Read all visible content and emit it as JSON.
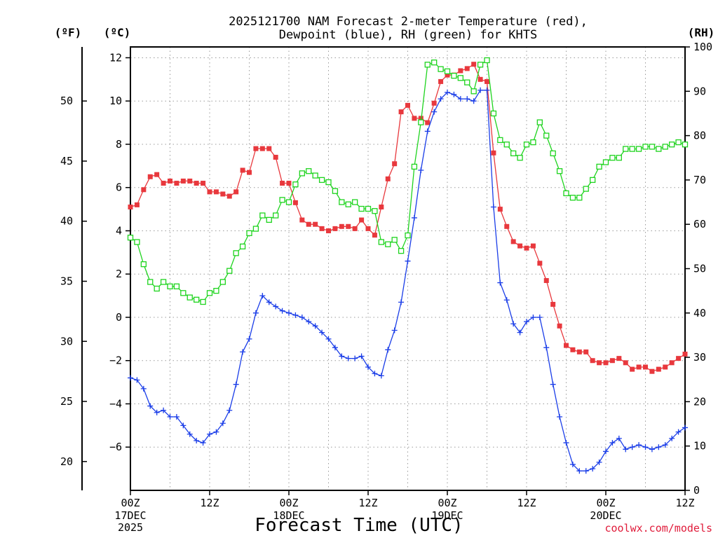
{
  "title": {
    "line1": "2025121700 NAM Forecast 2-meter Temperature (red),",
    "line2": "Dewpoint (blue), RH (green) for KHTS"
  },
  "units": {
    "f": "(ºF)",
    "c": "(ºC)",
    "rh": "(RH)"
  },
  "xlabel": "Forecast Time (UTC)",
  "credit": "coolwx.com/models",
  "colors": {
    "temperature": "#e8383d",
    "dewpoint": "#1a3de8",
    "rh": "#1ed41e",
    "grid": "#9a9a9a",
    "credit": "#e01b3a"
  },
  "chart_data": {
    "type": "line",
    "x_unit": "hours since 2025-12-17 00Z",
    "xlim": [
      0,
      84
    ],
    "ylim_c": [
      -8,
      12.5
    ],
    "ylim_f": [
      17.6,
      54.5
    ],
    "ylim_rh": [
      0,
      100
    ],
    "x_ticks": [
      {
        "x": 0,
        "label": "00Z",
        "sub": [
          "17DEC",
          "2025"
        ]
      },
      {
        "x": 12,
        "label": "12Z",
        "sub": []
      },
      {
        "x": 24,
        "label": "00Z",
        "sub": [
          "18DEC"
        ]
      },
      {
        "x": 36,
        "label": "12Z",
        "sub": []
      },
      {
        "x": 48,
        "label": "00Z",
        "sub": [
          "19DEC"
        ]
      },
      {
        "x": 60,
        "label": "12Z",
        "sub": []
      },
      {
        "x": 72,
        "label": "00Z",
        "sub": [
          "20DEC"
        ]
      },
      {
        "x": 84,
        "label": "12Z",
        "sub": []
      }
    ],
    "y_ticks_c": [
      -6,
      -4,
      -2,
      0,
      2,
      4,
      6,
      8,
      10,
      12
    ],
    "y_ticks_f": [
      20,
      25,
      30,
      35,
      40,
      45,
      50
    ],
    "y_ticks_rh": [
      0,
      10,
      20,
      30,
      40,
      50,
      60,
      70,
      80,
      90,
      100
    ],
    "series": [
      {
        "key": "temperature",
        "axis": "c",
        "marker": "filled-square",
        "x": [
          0,
          1,
          2,
          3,
          4,
          5,
          6,
          7,
          8,
          9,
          10,
          11,
          12,
          13,
          14,
          15,
          16,
          17,
          18,
          19,
          20,
          21,
          22,
          23,
          24,
          25,
          26,
          27,
          28,
          29,
          30,
          31,
          32,
          33,
          34,
          35,
          36,
          37,
          38,
          39,
          40,
          41,
          42,
          43,
          44,
          45,
          46,
          47,
          48,
          49,
          50,
          51,
          52,
          53,
          54,
          55,
          56,
          57,
          58,
          59,
          60,
          61,
          62,
          63,
          64,
          65,
          66,
          67,
          68,
          69,
          70,
          71,
          72,
          73,
          74,
          75,
          76,
          77,
          78,
          79,
          80,
          81,
          82,
          83,
          84
        ],
        "y": [
          5.1,
          5.2,
          5.9,
          6.5,
          6.6,
          6.2,
          6.3,
          6.2,
          6.3,
          6.3,
          6.2,
          6.2,
          5.8,
          5.8,
          5.7,
          5.6,
          5.8,
          6.8,
          6.7,
          7.8,
          7.8,
          7.8,
          7.4,
          6.2,
          6.2,
          5.3,
          4.5,
          4.3,
          4.3,
          4.1,
          4.0,
          4.1,
          4.2,
          4.2,
          4.1,
          4.5,
          4.1,
          3.8,
          5.1,
          6.4,
          7.1,
          9.5,
          9.8,
          9.2,
          9.2,
          9.0,
          9.9,
          10.9,
          11.2,
          11.2,
          11.4,
          11.5,
          11.7,
          11.0,
          10.9,
          7.6,
          5.0,
          4.2,
          3.5,
          3.3,
          3.2,
          3.3,
          2.5,
          1.7,
          0.6,
          -0.4,
          -1.3,
          -1.5,
          -1.6,
          -1.6,
          -2.0,
          -2.1,
          -2.1,
          -2.0,
          -1.9,
          -2.1,
          -2.4,
          -2.3,
          -2.3,
          -2.5,
          -2.4,
          -2.3,
          -2.1,
          -1.9,
          -1.7
        ]
      },
      {
        "key": "dewpoint",
        "axis": "c",
        "marker": "plus",
        "x": [
          0,
          1,
          2,
          3,
          4,
          5,
          6,
          7,
          8,
          9,
          10,
          11,
          12,
          13,
          14,
          15,
          16,
          17,
          18,
          19,
          20,
          21,
          22,
          23,
          24,
          25,
          26,
          27,
          28,
          29,
          30,
          31,
          32,
          33,
          34,
          35,
          36,
          37,
          38,
          39,
          40,
          41,
          42,
          43,
          44,
          45,
          46,
          47,
          48,
          49,
          50,
          51,
          52,
          53,
          54,
          55,
          56,
          57,
          58,
          59,
          60,
          61,
          62,
          63,
          64,
          65,
          66,
          67,
          68,
          69,
          70,
          71,
          72,
          73,
          74,
          75,
          76,
          77,
          78,
          79,
          80,
          81,
          82,
          83,
          84
        ],
        "y": [
          -2.8,
          -2.9,
          -3.3,
          -4.1,
          -4.4,
          -4.3,
          -4.6,
          -4.6,
          -5.0,
          -5.4,
          -5.7,
          -5.8,
          -5.4,
          -5.3,
          -4.9,
          -4.3,
          -3.1,
          -1.6,
          -1.0,
          0.2,
          1.0,
          0.7,
          0.5,
          0.3,
          0.2,
          0.1,
          0.0,
          -0.2,
          -0.4,
          -0.7,
          -1.0,
          -1.4,
          -1.8,
          -1.9,
          -1.9,
          -1.8,
          -2.3,
          -2.6,
          -2.7,
          -1.5,
          -0.6,
          0.7,
          2.6,
          4.6,
          6.8,
          8.6,
          9.5,
          10.1,
          10.4,
          10.3,
          10.1,
          10.1,
          10.0,
          10.5,
          10.5,
          5.1,
          1.6,
          0.8,
          -0.3,
          -0.7,
          -0.2,
          0.0,
          0.0,
          -1.4,
          -3.1,
          -4.6,
          -5.8,
          -6.8,
          -7.1,
          -7.1,
          -7.0,
          -6.7,
          -6.2,
          -5.8,
          -5.6,
          -6.1,
          -6.0,
          -5.9,
          -6.0,
          -6.1,
          -6.0,
          -5.9,
          -5.6,
          -5.3,
          -5.1
        ]
      },
      {
        "key": "rh",
        "axis": "rh",
        "marker": "open-square",
        "x": [
          0,
          1,
          2,
          3,
          4,
          5,
          6,
          7,
          8,
          9,
          10,
          11,
          12,
          13,
          14,
          15,
          16,
          17,
          18,
          19,
          20,
          21,
          22,
          23,
          24,
          25,
          26,
          27,
          28,
          29,
          30,
          31,
          32,
          33,
          34,
          35,
          36,
          37,
          38,
          39,
          40,
          41,
          42,
          43,
          44,
          45,
          46,
          47,
          48,
          49,
          50,
          51,
          52,
          53,
          54,
          55,
          56,
          57,
          58,
          59,
          60,
          61,
          62,
          63,
          64,
          65,
          66,
          67,
          68,
          69,
          70,
          71,
          72,
          73,
          74,
          75,
          76,
          77,
          78,
          79,
          80,
          81,
          82,
          83,
          84
        ],
        "y": [
          57,
          56,
          51,
          47,
          45.5,
          47,
          46,
          46,
          44.5,
          43.5,
          43,
          42.5,
          44.5,
          45,
          47,
          49.5,
          53.5,
          55,
          58,
          59,
          62,
          61,
          62,
          65.5,
          65,
          69,
          71.5,
          72,
          71,
          70,
          69.5,
          67.5,
          65,
          64.5,
          65,
          63.5,
          63.5,
          63,
          56,
          55.5,
          56.5,
          54,
          57.5,
          73,
          83,
          96,
          96.5,
          95,
          94.5,
          93.5,
          93,
          92,
          90,
          96,
          97,
          85,
          79,
          78,
          76,
          75,
          78,
          78.5,
          83,
          80,
          76,
          72,
          67,
          66,
          66,
          68,
          70,
          73,
          74,
          75,
          75,
          77,
          77,
          77,
          77.5,
          77.5,
          77,
          77.5,
          78,
          78.5,
          78
        ]
      }
    ]
  }
}
